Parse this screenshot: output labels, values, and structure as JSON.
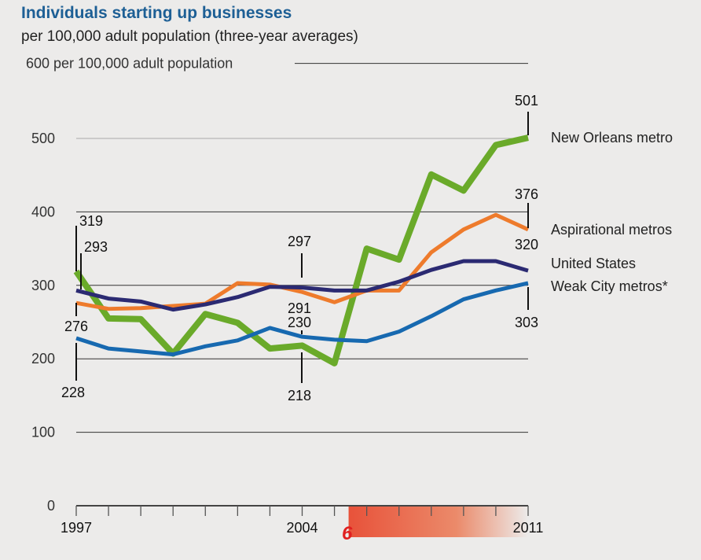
{
  "chart_data": {
    "type": "line",
    "title": "Individuals starting up businesses",
    "subtitle": "per 100,000 adult population (three-year averages)",
    "ylabel": "600 per 100,000 adult population",
    "ylim": [
      0,
      600
    ],
    "yticks": [
      "0",
      "100",
      "200",
      "300",
      "400",
      "500"
    ],
    "x": [
      1997,
      1998,
      1999,
      2000,
      2001,
      2002,
      2003,
      2004,
      2005,
      2006,
      2007,
      2008,
      2009,
      2010,
      2011
    ],
    "xtick_labels": {
      "1997": "1997",
      "2004": "2004",
      "2011": "2011"
    },
    "grid": true,
    "highlight": {
      "label": "hurricane-icon",
      "from": 2005,
      "to": 2011,
      "color": "#e8523a"
    },
    "series": [
      {
        "name": "New Orleans metro",
        "color": "#6aaa2a",
        "values": [
          319,
          255,
          254,
          207,
          261,
          249,
          214,
          218,
          194,
          350,
          335,
          451,
          429,
          491,
          501
        ]
      },
      {
        "name": "Aspirational metros",
        "color": "#ee7b2c",
        "values": [
          276,
          268,
          269,
          272,
          275,
          303,
          301,
          291,
          277,
          293,
          293,
          345,
          376,
          396,
          376
        ]
      },
      {
        "name": "United States",
        "color": "#2b2a72",
        "values": [
          293,
          282,
          278,
          267,
          274,
          284,
          298,
          297,
          293,
          293,
          305,
          321,
          333,
          333,
          320
        ]
      },
      {
        "name": "Weak City metros*",
        "color": "#1769b0",
        "values": [
          228,
          214,
          210,
          206,
          217,
          225,
          242,
          230,
          226,
          224,
          237,
          258,
          281,
          293,
          303
        ]
      }
    ],
    "annotations": [
      {
        "year": 1997,
        "label": "319"
      },
      {
        "year": 1997,
        "label": "293"
      },
      {
        "year": 1997,
        "label": "276"
      },
      {
        "year": 1997,
        "label": "228"
      },
      {
        "year": 2004,
        "label": "297"
      },
      {
        "year": 2004,
        "label": "291"
      },
      {
        "year": 2004,
        "label": "230"
      },
      {
        "year": 2004,
        "label": "218"
      },
      {
        "year": 2011,
        "label": "501"
      },
      {
        "year": 2011,
        "label": "376"
      },
      {
        "year": 2011,
        "label": "320"
      },
      {
        "year": 2011,
        "label": "303"
      }
    ]
  }
}
